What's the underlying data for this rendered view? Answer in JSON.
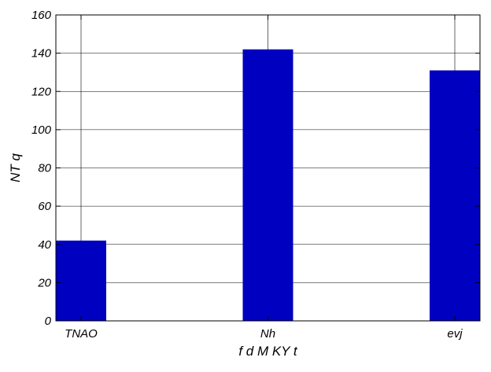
{
  "chart_data": {
    "type": "bar",
    "categories": [
      "TNAO",
      "Nh",
      "evj"
    ],
    "values": [
      42,
      142,
      131
    ],
    "xlabel": "f d M KY t",
    "ylabel": "NT   q",
    "ylim": [
      0,
      160
    ],
    "yticks": [
      0,
      20,
      40,
      60,
      80,
      100,
      120,
      140,
      160
    ],
    "grid": true,
    "legend": "none",
    "bar_color": "#0000c0",
    "grid_color": "#000000"
  }
}
